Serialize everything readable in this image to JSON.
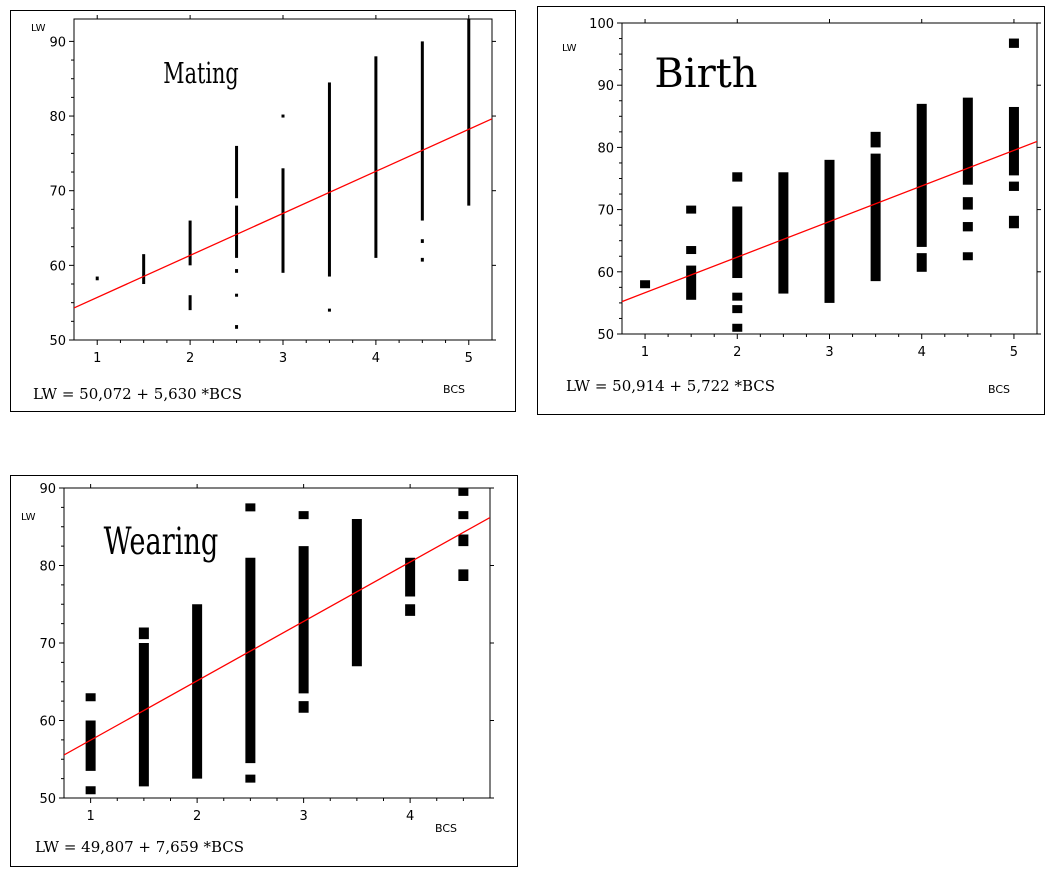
{
  "colors": {
    "regression_line": "#ff0000",
    "points": "#000000",
    "axis": "#000000"
  },
  "chart_data": [
    {
      "type": "scatter",
      "title": "Mating",
      "ylabel": "LW",
      "xlabel": "BCS",
      "equation": "LW = 50,072 + 5,630 *BCS",
      "xlim": [
        0.75,
        5.25
      ],
      "ylim": [
        50,
        93
      ],
      "x_ticks": [
        1,
        2,
        3,
        4,
        5
      ],
      "x_tick_labels": [
        "1",
        "2",
        "3",
        "4",
        "5"
      ],
      "y_ticks": [
        50,
        60,
        70,
        80,
        90
      ],
      "y_tick_labels": [
        "50",
        "60",
        "70",
        "80",
        "90"
      ],
      "regression": {
        "intercept": 50.072,
        "slope": 5.63
      },
      "marker": "small",
      "columns": [
        {
          "x": 1,
          "segments": [
            [
              58,
              58.5
            ]
          ]
        },
        {
          "x": 1.5,
          "segments": [
            [
              57.5,
              61.5
            ]
          ]
        },
        {
          "x": 2,
          "segments": [
            [
              54,
              56
            ],
            [
              60,
              66
            ]
          ]
        },
        {
          "x": 2.5,
          "segments": [
            [
              51.5,
              52
            ],
            [
              56,
              56
            ],
            [
              59,
              59.5
            ],
            [
              61,
              68
            ],
            [
              69,
              76
            ]
          ]
        },
        {
          "x": 3,
          "segments": [
            [
              59,
              73
            ],
            [
              80,
              80
            ]
          ]
        },
        {
          "x": 3.5,
          "segments": [
            [
              54,
              54
            ],
            [
              58.5,
              84.5
            ]
          ]
        },
        {
          "x": 4,
          "segments": [
            [
              61,
              88
            ]
          ]
        },
        {
          "x": 4.5,
          "segments": [
            [
              60.5,
              61
            ],
            [
              63,
              63.5
            ],
            [
              66,
              90
            ]
          ]
        },
        {
          "x": 5,
          "segments": [
            [
              68,
              93
            ]
          ]
        }
      ]
    },
    {
      "type": "scatter",
      "title": "Birth",
      "ylabel": "LW",
      "xlabel": "BCS",
      "equation": "LW = 50,914 + 5,722 *BCS",
      "xlim": [
        0.75,
        5.25
      ],
      "ylim": [
        50,
        100
      ],
      "x_ticks": [
        1,
        2,
        3,
        4,
        5
      ],
      "x_tick_labels": [
        "1",
        "2",
        "3",
        "4",
        "5"
      ],
      "y_ticks": [
        50,
        60,
        70,
        80,
        90,
        100
      ],
      "y_tick_labels": [
        "50",
        "60",
        "70",
        "80",
        "90",
        "100"
      ],
      "regression": {
        "intercept": 50.914,
        "slope": 5.722
      },
      "marker": "large",
      "columns": [
        {
          "x": 1,
          "segments": [
            [
              57.5,
              58.5
            ]
          ]
        },
        {
          "x": 1.5,
          "segments": [
            [
              55.5,
              61
            ],
            [
              63,
              64
            ],
            [
              69.5,
              70.5
            ]
          ]
        },
        {
          "x": 2,
          "segments": [
            [
              50.5,
              51.5
            ],
            [
              53.5,
              54.5
            ],
            [
              55.5,
              56.5
            ],
            [
              59,
              70.5
            ],
            [
              74.5,
              76
            ]
          ]
        },
        {
          "x": 2.5,
          "segments": [
            [
              56.5,
              76
            ]
          ]
        },
        {
          "x": 3,
          "segments": [
            [
              55,
              78
            ]
          ]
        },
        {
          "x": 3.5,
          "segments": [
            [
              58.5,
              79
            ],
            [
              80,
              82.5
            ]
          ]
        },
        {
          "x": 4,
          "segments": [
            [
              60,
              63
            ],
            [
              64,
              87
            ]
          ]
        },
        {
          "x": 4.5,
          "segments": [
            [
              62,
              63
            ],
            [
              66.5,
              68
            ],
            [
              70,
              72
            ],
            [
              74,
              88
            ]
          ]
        },
        {
          "x": 5,
          "segments": [
            [
              67,
              69
            ],
            [
              73,
              74.5
            ],
            [
              75.5,
              86.5
            ],
            [
              96,
              97.5
            ]
          ]
        }
      ]
    },
    {
      "type": "scatter",
      "title": "Wearing",
      "ylabel": "LW",
      "xlabel": "BCS",
      "equation": "LW = 49,807 + 7,659 *BCS",
      "xlim": [
        0.75,
        4.75
      ],
      "ylim": [
        50,
        90
      ],
      "x_ticks": [
        1,
        2,
        3,
        4
      ],
      "x_tick_labels": [
        "1",
        "2",
        "3",
        "4"
      ],
      "y_ticks": [
        50,
        60,
        70,
        80,
        90
      ],
      "y_tick_labels": [
        "50",
        "60",
        "70",
        "80",
        "90"
      ],
      "regression": {
        "intercept": 49.807,
        "slope": 7.659
      },
      "marker": "large",
      "columns": [
        {
          "x": 1,
          "segments": [
            [
              50.5,
              51.5
            ],
            [
              53.5,
              60
            ],
            [
              62.5,
              63.5
            ]
          ]
        },
        {
          "x": 1.5,
          "segments": [
            [
              51.5,
              70
            ],
            [
              70.5,
              72
            ]
          ]
        },
        {
          "x": 2,
          "segments": [
            [
              52.5,
              75
            ]
          ]
        },
        {
          "x": 2.5,
          "segments": [
            [
              52,
              53
            ],
            [
              54.5,
              81
            ],
            [
              87,
              88
            ]
          ]
        },
        {
          "x": 3,
          "segments": [
            [
              61,
              62.5
            ],
            [
              63.5,
              82.5
            ],
            [
              86,
              87
            ]
          ]
        },
        {
          "x": 3.5,
          "segments": [
            [
              67,
              86
            ]
          ]
        },
        {
          "x": 4,
          "segments": [
            [
              73.5,
              75
            ],
            [
              76,
              81
            ]
          ]
        },
        {
          "x": 4.5,
          "segments": [
            [
              78,
              79.5
            ],
            [
              82.5,
              84
            ],
            [
              86,
              87
            ],
            [
              89,
              90
            ]
          ]
        }
      ]
    }
  ]
}
